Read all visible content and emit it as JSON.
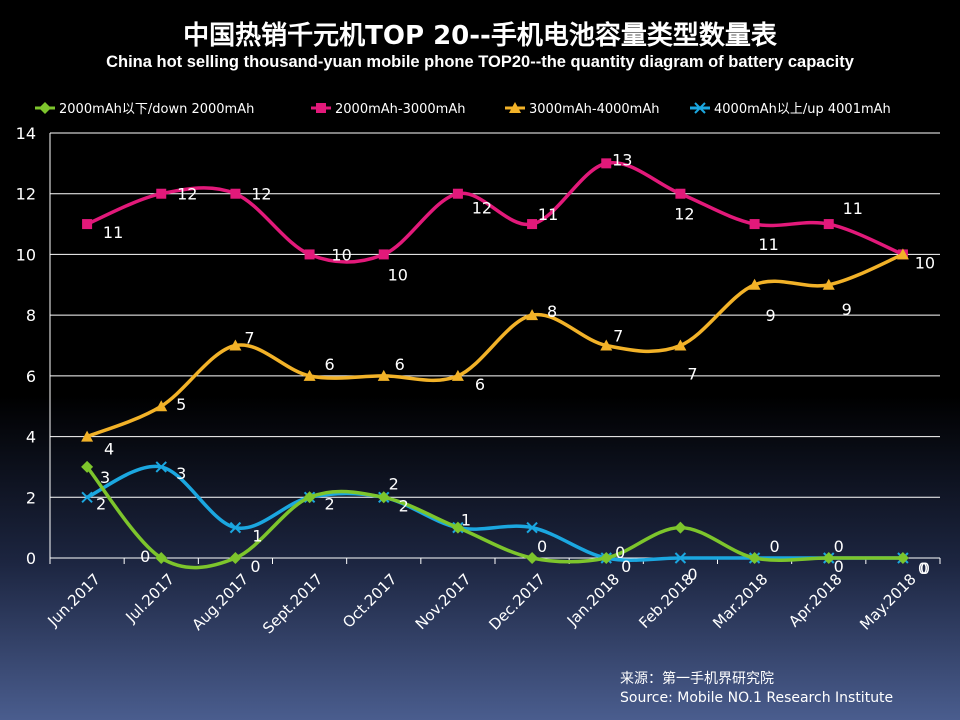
{
  "chart_data": {
    "type": "line",
    "title": "中国热销千元机TOP 20--手机电池容量类型数量表",
    "subtitle": "China hot selling thousand-yuan mobile phone TOP20--the quantity diagram of battery capacity",
    "xlabel": "",
    "ylabel": "",
    "ylim": [
      0,
      14
    ],
    "yticks": [
      "0",
      "2",
      "4",
      "6",
      "8",
      "10",
      "12",
      "14"
    ],
    "grid": true,
    "legend_position": "top",
    "categories": [
      "Jun.2017",
      "Jul.2017",
      "Aug.2017",
      "Sept.2017",
      "Oct.2017",
      "Nov.2017",
      "Dec.2017",
      "Jan.2018",
      "Feb.2018",
      "Mar.2018",
      "Apr.2018",
      "May.2018"
    ],
    "series": [
      {
        "name": "2000mAh以下/down 2000mAh",
        "color": "#7dc52c",
        "marker": "diamond",
        "values": [
          3,
          0,
          0,
          2,
          2,
          1,
          0,
          0,
          1,
          0,
          0,
          0
        ],
        "labels": [
          "3",
          "0",
          "0",
          "2",
          "2",
          "1",
          "0",
          "0",
          "",
          "0",
          "0",
          "0"
        ]
      },
      {
        "name": "2000mAh-3000mAh",
        "color": "#e2197a",
        "marker": "square",
        "values": [
          11,
          12,
          12,
          10,
          10,
          12,
          11,
          13,
          12,
          11,
          11,
          10
        ],
        "labels": [
          "11",
          "12",
          "12",
          "10",
          "10",
          "12",
          "11",
          "13",
          "12",
          "11",
          "11",
          "10"
        ]
      },
      {
        "name": "3000mAh-4000mAh",
        "color": "#f2b228",
        "marker": "triangle",
        "values": [
          4,
          5,
          7,
          6,
          6,
          6,
          8,
          7,
          7,
          9,
          9,
          10
        ],
        "labels": [
          "4",
          "5",
          "7",
          "6",
          "6",
          "6",
          "8",
          "7",
          "7",
          "9",
          "9",
          ""
        ]
      },
      {
        "name": "4000mAh以上/up 4001mAh",
        "color": "#1ba7e0",
        "marker": "x",
        "values": [
          2,
          3,
          1,
          2,
          2,
          1,
          1,
          0,
          0,
          0,
          0,
          0
        ],
        "labels": [
          "2",
          "3",
          "1",
          "",
          "2",
          "",
          "",
          "0",
          "0",
          "",
          "0",
          "0"
        ]
      }
    ]
  },
  "source": {
    "line_cn": "来源：第一手机界研究院",
    "line_en": "Source: Mobile NO.1 Research Institute"
  }
}
